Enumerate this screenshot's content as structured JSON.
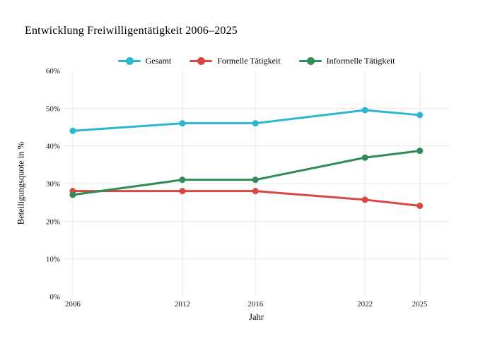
{
  "page": {
    "title": "Entwicklung Freiwilligentätigkeit 2006–2025"
  },
  "chart_data": {
    "type": "line",
    "title": "Entwicklung Freiwilligentätigkeit 2006–2025",
    "xlabel": "Jahr",
    "ylabel": "Beteiligungsquote in %",
    "x": [
      2006,
      2012,
      2016,
      2022,
      2025
    ],
    "series": [
      {
        "name": "Gesamt",
        "color": "#2bb6d4",
        "values": [
          44,
          46,
          46,
          49.5,
          48.2
        ]
      },
      {
        "name": "Formelle Tätigkeit",
        "color": "#d94742",
        "values": [
          28,
          28,
          28,
          25.7,
          24.1
        ]
      },
      {
        "name": "Informelle Tätigkeit",
        "color": "#2f8b57",
        "values": [
          27,
          31,
          31,
          36.9,
          38.7
        ]
      }
    ],
    "xlim": [
      2005.5,
      2026.6
    ],
    "ylim": [
      0,
      60
    ],
    "xticks": [
      2006,
      2012,
      2016,
      2022,
      2025
    ],
    "yticks": [
      0,
      10,
      20,
      30,
      40,
      50,
      60
    ],
    "ytick_labels": [
      "0%",
      "10%",
      "20%",
      "30%",
      "40%",
      "50%",
      "60%"
    ],
    "grid": true,
    "legend_position": "top-center",
    "gridline_color": "#e8e8e8",
    "background": "#ffffff"
  }
}
